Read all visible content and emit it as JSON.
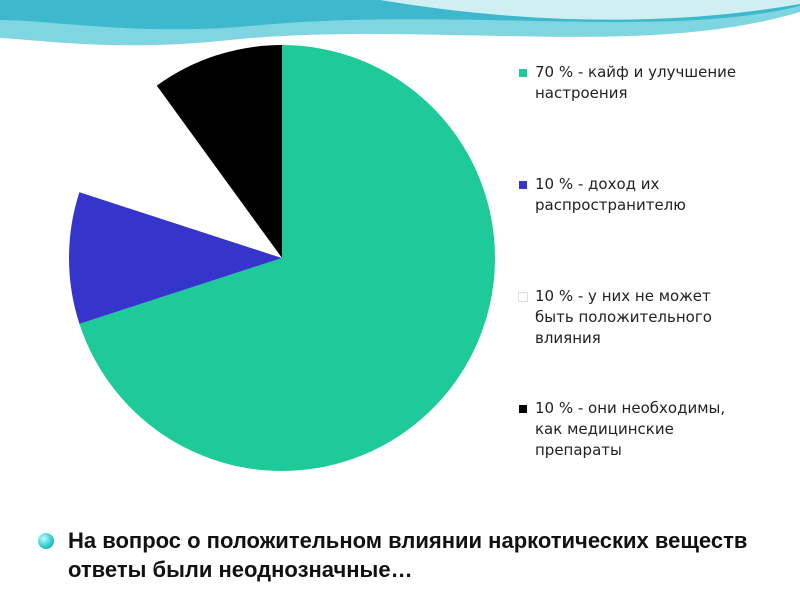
{
  "chart_data": {
    "type": "pie",
    "categories": [
      "70 %  - кайф и улучшение настроения",
      "10 %  - доход их распространителю",
      "10 % - у них не может быть положительного влияния",
      "10 %  - они необходимы, как медицинские препараты"
    ],
    "values": [
      70,
      10,
      10,
      10
    ],
    "colors": [
      "#1ec99a",
      "#3535cc",
      "#ffffff",
      "#000000"
    ]
  },
  "slide": {
    "bullet": "На вопрос о положительном влиянии наркотических веществ ответы были неоднозначные…"
  }
}
